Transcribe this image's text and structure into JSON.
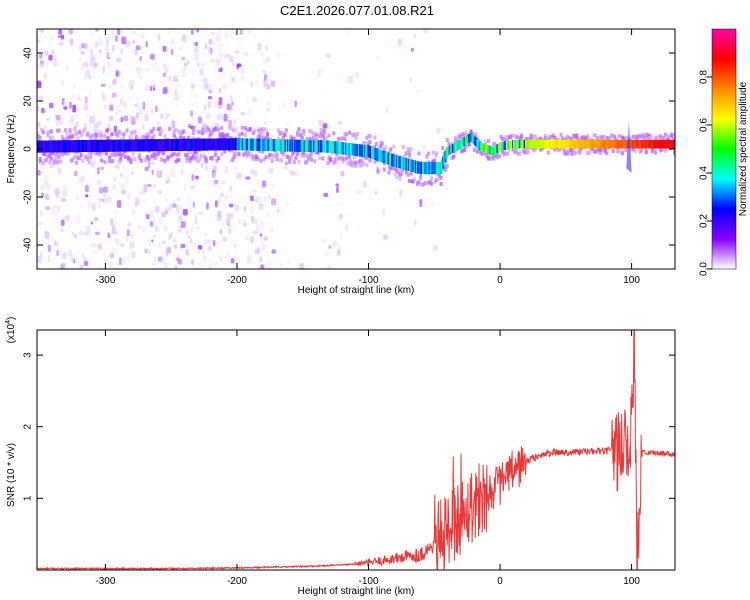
{
  "title": "C2E1.2026.077.01.08.R21",
  "chart_data": [
    {
      "type": "heatmap",
      "xlabel": "Height of straight line (km)",
      "ylabel": "Frequency (Hz)",
      "xlim": [
        -352,
        133
      ],
      "ylim": [
        -50,
        50
      ],
      "x_ticks": [
        -300,
        -200,
        -100,
        0,
        100
      ],
      "y_ticks": [
        -40,
        -20,
        0,
        20,
        40
      ],
      "colorbar": {
        "label": "Normalized spectral amplitude",
        "range": [
          0,
          1
        ],
        "ticks": [
          "0.0",
          "0.2",
          "0.4",
          "0.6",
          "0.8"
        ],
        "colors": [
          "#ffffff",
          "#8800ff",
          "#0000ff",
          "#00ffff",
          "#00ff00",
          "#ffff00",
          "#ff8800",
          "#ff0000",
          "#ff00aa"
        ]
      },
      "ridge_frequency_hz": [
        [
          -352,
          1
        ],
        [
          -200,
          2
        ],
        [
          -130,
          1
        ],
        [
          -100,
          -1
        ],
        [
          -80,
          -5
        ],
        [
          -60,
          -8
        ],
        [
          -45,
          -8
        ],
        [
          -40,
          -1
        ],
        [
          -30,
          2
        ],
        [
          -22,
          5
        ],
        [
          -15,
          1
        ],
        [
          -5,
          -1
        ],
        [
          0,
          1
        ],
        [
          10,
          2
        ],
        [
          30,
          2
        ],
        [
          60,
          2
        ],
        [
          90,
          2
        ],
        [
          100,
          2
        ],
        [
          133,
          2
        ]
      ]
    },
    {
      "type": "line",
      "xlabel": "Height of straight line (km)",
      "ylabel": "SNR (10 * v/v)",
      "y_multiplier": "(x10",
      "y_multiplier_exp": "4",
      "xlim": [
        -352,
        133
      ],
      "ylim": [
        0,
        3.35
      ],
      "x_ticks": [
        -300,
        -200,
        -100,
        0,
        100
      ],
      "y_ticks": [
        1,
        2,
        3
      ],
      "line_color": "#e83838",
      "series": [
        {
          "points": [
            [
              -352,
              0.02
            ],
            [
              -300,
              0.02
            ],
            [
              -250,
              0.02
            ],
            [
              -200,
              0.03
            ],
            [
              -150,
              0.05
            ],
            [
              -120,
              0.07
            ],
            [
              -100,
              0.1
            ],
            [
              -80,
              0.16
            ],
            [
              -60,
              0.22
            ],
            [
              -50,
              0.35
            ],
            [
              -40,
              0.55
            ],
            [
              -30,
              0.75
            ],
            [
              -20,
              0.95
            ],
            [
              -10,
              1.08
            ],
            [
              0,
              1.2
            ],
            [
              10,
              1.38
            ],
            [
              20,
              1.52
            ],
            [
              30,
              1.6
            ],
            [
              40,
              1.64
            ],
            [
              60,
              1.65
            ],
            [
              80,
              1.66
            ],
            [
              90,
              1.68
            ],
            [
              95,
              1.75
            ],
            [
              100,
              1.9
            ],
            [
              102,
              3.35
            ],
            [
              104,
              0.15
            ],
            [
              108,
              1.66
            ],
            [
              115,
              1.64
            ],
            [
              133,
              1.62
            ]
          ]
        }
      ]
    }
  ]
}
